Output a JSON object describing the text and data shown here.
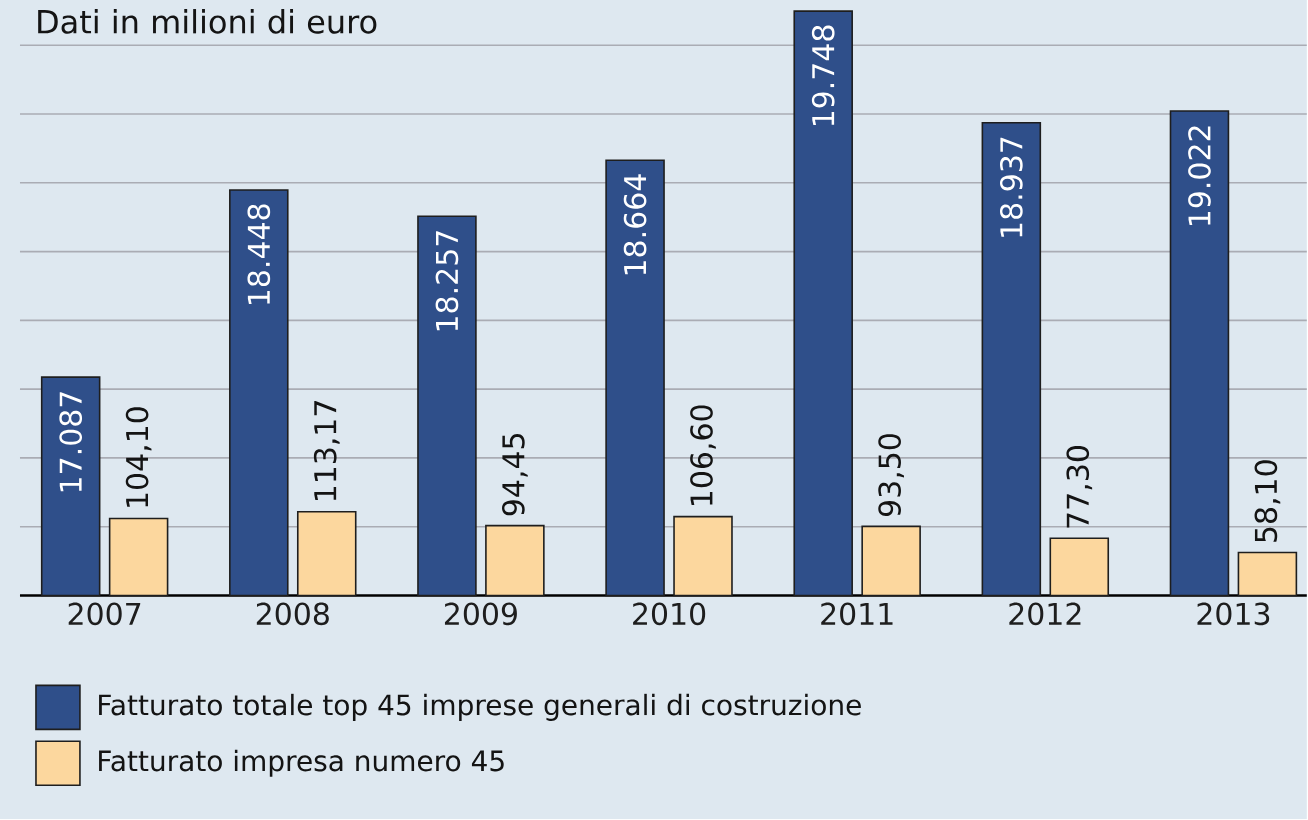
{
  "chart_data": {
    "type": "bar",
    "title": "Dati in milioni di euro",
    "categories": [
      "2007",
      "2008",
      "2009",
      "2010",
      "2011",
      "2012",
      "2013"
    ],
    "series": [
      {
        "name": "Fatturato totale top 45 imprese generali di costruzione",
        "color": "#2f4f8a",
        "values": [
          17087,
          18448,
          18257,
          18664,
          19748,
          18937,
          19022
        ],
        "value_labels": [
          "17.087",
          "18.448",
          "18.257",
          "18.664",
          "19.748",
          "18.937",
          "19.022"
        ]
      },
      {
        "name": "Fatturato impresa numero 45",
        "color": "#fcd79e",
        "axis": "y2",
        "values": [
          104.1,
          113.17,
          94.45,
          106.6,
          93.5,
          77.3,
          58.1
        ],
        "value_labels": [
          "104,10",
          "113,17",
          "94,45",
          "106,60",
          "93,50",
          "77,30",
          "58,10"
        ]
      }
    ],
    "ylim": [
      15500,
      19800
    ],
    "yticks": [
      {
        "value": 16000,
        "label": null
      },
      {
        "value": 16500,
        "label": null
      },
      {
        "value": 17000,
        "label": null
      },
      {
        "value": 17500,
        "label": null
      },
      {
        "value": 18000,
        "label": null
      },
      {
        "value": 18500,
        "label": null
      },
      {
        "value": 19000,
        "label": null
      },
      {
        "value": 19500,
        "label": null
      }
    ],
    "y2lim": [
      0,
      800
    ],
    "grid": "y",
    "legend": "bottom left",
    "tick_labels": "x"
  }
}
